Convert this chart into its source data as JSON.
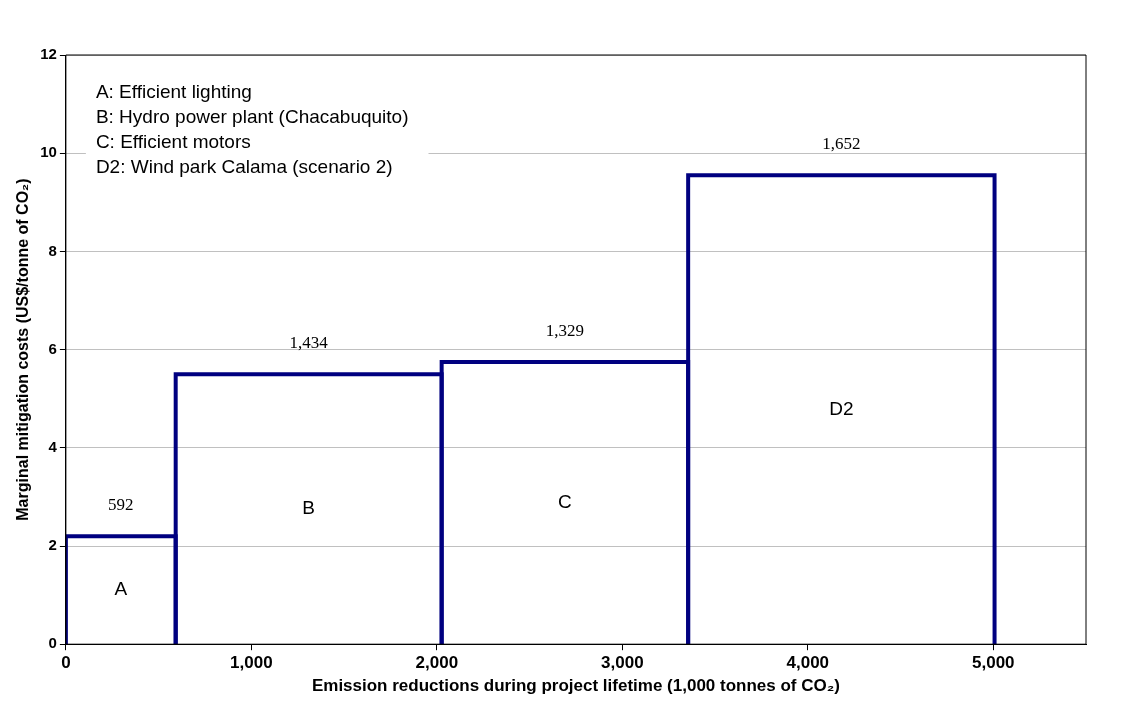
{
  "chart_data": {
    "type": "histogram",
    "xlabel": "Emission reductions during project lifetime (1,000 tonnes of CO₂)",
    "ylabel": "Marginal mitigation costs (US$/tonne of CO₂)",
    "bins": [
      0,
      592,
      2026,
      3355,
      5007
    ],
    "values": [
      2.2,
      5.5,
      5.75,
      9.55
    ],
    "color": "#000080",
    "xlim": [
      0,
      5500
    ],
    "xticks": [
      {
        "value": 0,
        "label": "0"
      },
      {
        "value": 1000,
        "label": "1,000"
      },
      {
        "value": 2000,
        "label": "2,000"
      },
      {
        "value": 3000,
        "label": "3,000"
      },
      {
        "value": 4000,
        "label": "4,000"
      },
      {
        "value": 5000,
        "label": "5,000"
      }
    ],
    "ylim": [
      0,
      12
    ],
    "yticks": [
      0,
      2,
      4,
      6,
      8,
      10,
      12
    ],
    "grid": "y",
    "annotations": [
      "A: Efficient lighting",
      "B: Hydro power plant (Chacabuquito)",
      "C: Efficient motors",
      "D2: Wind park Calama (scenario 2)",
      "A",
      "B",
      "C",
      "D2",
      {
        "text": "592",
        "x": 296,
        "y": 2.2
      },
      {
        "text": "1,434",
        "x": 1309,
        "y": 5.5
      },
      {
        "text": "1,329",
        "x": 2690.5,
        "y": 5.75
      },
      {
        "text": "1,652",
        "x": 4181,
        "y": 9.55
      }
    ]
  }
}
